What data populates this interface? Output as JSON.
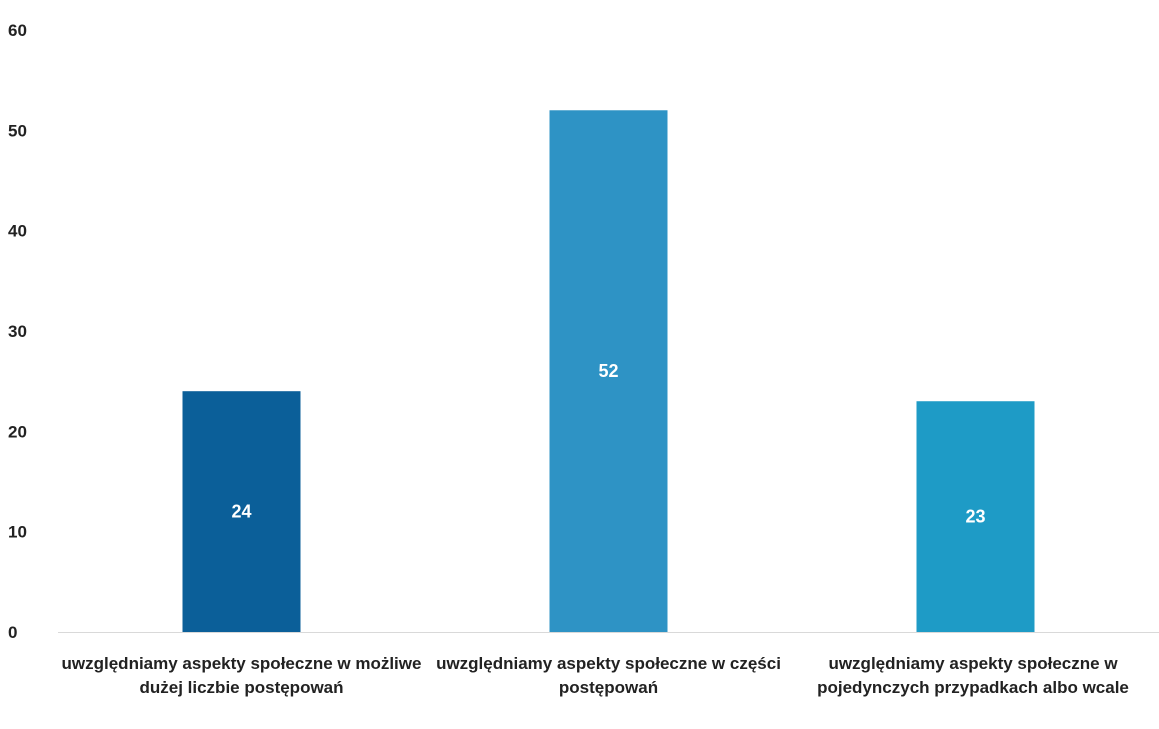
{
  "chart_data": {
    "type": "bar",
    "categories": [
      "uwzględniamy aspekty społeczne w możliwe dużej liczbie postępowań",
      "uwzględniamy aspekty społeczne w części postępowań",
      "uwzględniamy aspekty społeczne w pojedynczych przypadkach albo wcale"
    ],
    "values": [
      24,
      52,
      23
    ],
    "colors": [
      "#0b5f99",
      "#2e93c5",
      "#1e9bc6"
    ],
    "ylim": [
      0,
      60
    ],
    "yticks": [
      0,
      10,
      20,
      30,
      40,
      50,
      60
    ],
    "title": "",
    "xlabel": "",
    "ylabel": "",
    "grid": false,
    "legend": "none",
    "data_labels": true
  }
}
